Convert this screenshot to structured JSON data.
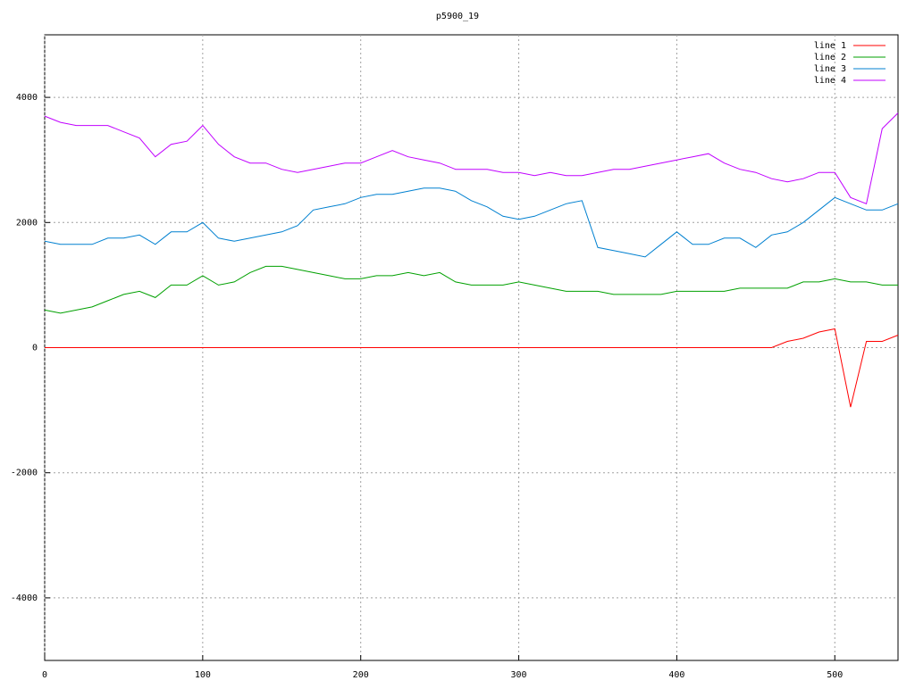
{
  "chart_data": {
    "type": "line",
    "title": "p5900_19",
    "x": [
      0,
      10,
      20,
      30,
      40,
      50,
      60,
      70,
      80,
      90,
      100,
      110,
      120,
      130,
      140,
      150,
      160,
      170,
      180,
      190,
      200,
      210,
      220,
      230,
      240,
      250,
      260,
      270,
      280,
      290,
      300,
      310,
      320,
      330,
      340,
      350,
      360,
      370,
      380,
      390,
      400,
      410,
      420,
      430,
      440,
      450,
      460,
      470,
      480,
      490,
      500,
      510,
      520,
      530,
      540
    ],
    "series": [
      {
        "name": "line 1",
        "color": "#ff0000",
        "values": [
          0,
          0,
          0,
          0,
          0,
          0,
          0,
          0,
          0,
          0,
          0,
          0,
          0,
          0,
          0,
          0,
          0,
          0,
          0,
          0,
          0,
          0,
          0,
          0,
          0,
          0,
          0,
          0,
          0,
          0,
          0,
          0,
          0,
          0,
          0,
          0,
          0,
          0,
          0,
          0,
          0,
          0,
          0,
          0,
          0,
          0,
          0,
          100,
          150,
          250,
          300,
          -950,
          100,
          100,
          200
        ]
      },
      {
        "name": "line 2",
        "color": "#00a000",
        "values": [
          600,
          550,
          600,
          650,
          750,
          850,
          900,
          800,
          1000,
          1000,
          1150,
          1000,
          1050,
          1200,
          1300,
          1300,
          1250,
          1200,
          1150,
          1100,
          1100,
          1150,
          1150,
          1200,
          1150,
          1200,
          1050,
          1000,
          1000,
          1000,
          1050,
          1000,
          950,
          900,
          900,
          900,
          850,
          850,
          850,
          850,
          900,
          900,
          900,
          900,
          950,
          950,
          950,
          950,
          1050,
          1050,
          1100,
          1050,
          1050,
          1000,
          1000
        ]
      },
      {
        "name": "line 3",
        "color": "#0080d0",
        "values": [
          1700,
          1650,
          1650,
          1650,
          1750,
          1750,
          1800,
          1650,
          1850,
          1850,
          2000,
          1750,
          1700,
          1750,
          1800,
          1850,
          1950,
          2200,
          2250,
          2300,
          2400,
          2450,
          2450,
          2500,
          2550,
          2550,
          2500,
          2350,
          2250,
          2100,
          2050,
          2100,
          2200,
          2300,
          2350,
          1600,
          1550,
          1500,
          1450,
          1650,
          1850,
          1650,
          1650,
          1750,
          1750,
          1600,
          1800,
          1850,
          2000,
          2200,
          2400,
          2300,
          2200,
          2200,
          2300
        ]
      },
      {
        "name": "line 4",
        "color": "#c000ff",
        "values": [
          3700,
          3600,
          3550,
          3550,
          3550,
          3450,
          3350,
          3050,
          3250,
          3300,
          3550,
          3250,
          3050,
          2950,
          2950,
          2850,
          2800,
          2850,
          2900,
          2950,
          2950,
          3050,
          3150,
          3050,
          3000,
          2950,
          2850,
          2850,
          2850,
          2800,
          2800,
          2750,
          2800,
          2750,
          2750,
          2800,
          2850,
          2850,
          2900,
          2950,
          3000,
          3050,
          3100,
          2950,
          2850,
          2800,
          2700,
          2650,
          2700,
          2800,
          2800,
          2400,
          2300,
          3500,
          3750
        ]
      }
    ],
    "xlim": [
      0,
      540
    ],
    "ylim": [
      -5000,
      5000
    ],
    "xticks": [
      0,
      100,
      200,
      300,
      400,
      500
    ],
    "yticks": [
      -4000,
      -2000,
      0,
      2000,
      4000
    ],
    "grid": true,
    "legend": "top-right"
  }
}
